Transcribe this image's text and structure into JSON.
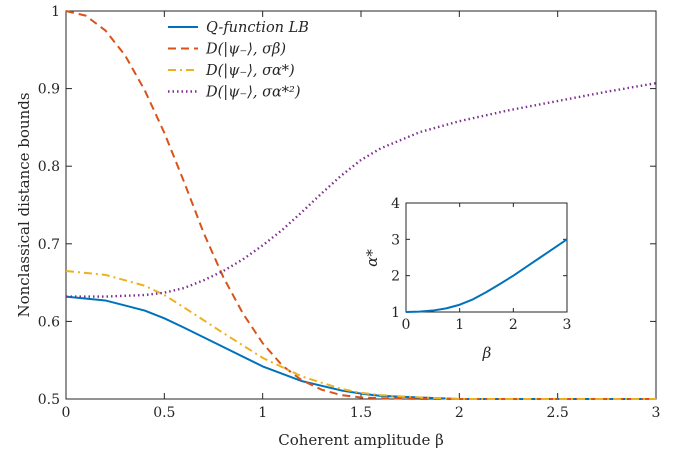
{
  "chart_data": [
    {
      "type": "line",
      "xlabel": "Coherent amplitude β",
      "ylabel": "Nonclassical distance bounds",
      "xlim": [
        0,
        3
      ],
      "ylim": [
        0.5,
        1.0
      ],
      "x_ticks": [
        "0",
        "0.5",
        "1",
        "1.5",
        "2",
        "2.5",
        "3"
      ],
      "y_ticks": [
        "0.5",
        "0.6",
        "0.7",
        "0.8",
        "0.9",
        "1"
      ],
      "grid": false,
      "legend_position": "top-center",
      "series": [
        {
          "name": "Q-function LB",
          "color": "#0072BD",
          "dash": "solid",
          "x": [
            0,
            0.2,
            0.4,
            0.5,
            0.6,
            0.8,
            1.0,
            1.2,
            1.4,
            1.5,
            1.6,
            1.8,
            2.0,
            2.5,
            3.0
          ],
          "y": [
            0.632,
            0.627,
            0.614,
            0.604,
            0.592,
            0.567,
            0.542,
            0.523,
            0.511,
            0.507,
            0.504,
            0.502,
            0.5,
            0.5,
            0.5
          ]
        },
        {
          "name": "D(|ψ₋⟩, σβ)",
          "color": "#D95319",
          "dash": "dashed",
          "x": [
            0,
            0.1,
            0.2,
            0.3,
            0.4,
            0.5,
            0.6,
            0.7,
            0.8,
            0.9,
            1.0,
            1.1,
            1.2,
            1.3,
            1.4,
            1.5,
            1.6,
            1.8,
            2.0,
            2.5,
            3.0
          ],
          "y": [
            1.0,
            0.994,
            0.975,
            0.943,
            0.898,
            0.843,
            0.78,
            0.714,
            0.657,
            0.61,
            0.572,
            0.543,
            0.524,
            0.512,
            0.505,
            0.502,
            0.501,
            0.5,
            0.5,
            0.5,
            0.5
          ]
        },
        {
          "name": "D(|ψ₋⟩, σα*)",
          "color": "#EDB120",
          "dash": "dashdot",
          "x": [
            0,
            0.2,
            0.4,
            0.5,
            0.6,
            0.8,
            1.0,
            1.2,
            1.4,
            1.5,
            1.6,
            1.8,
            2.0,
            2.5,
            3.0
          ],
          "y": [
            0.665,
            0.66,
            0.646,
            0.634,
            0.618,
            0.585,
            0.553,
            0.529,
            0.513,
            0.508,
            0.505,
            0.502,
            0.5,
            0.5,
            0.5
          ]
        },
        {
          "name": "D(|ψ₋⟩, σα*²)",
          "color": "#7E2F8E",
          "dash": "dotted",
          "x": [
            0,
            0.2,
            0.4,
            0.5,
            0.6,
            0.7,
            0.8,
            0.9,
            1.0,
            1.1,
            1.2,
            1.3,
            1.4,
            1.5,
            1.6,
            1.8,
            2.0,
            2.25,
            2.5,
            2.75,
            3.0
          ],
          "y": [
            0.632,
            0.632,
            0.634,
            0.637,
            0.643,
            0.653,
            0.665,
            0.68,
            0.698,
            0.718,
            0.741,
            0.765,
            0.788,
            0.808,
            0.823,
            0.844,
            0.858,
            0.872,
            0.884,
            0.896,
            0.907
          ]
        }
      ]
    },
    {
      "type": "line",
      "xlabel": "β",
      "ylabel": "α*",
      "xlim": [
        0,
        3
      ],
      "ylim": [
        1,
        4
      ],
      "x_ticks": [
        "0",
        "1",
        "2",
        "3"
      ],
      "y_ticks": [
        "1",
        "2",
        "3",
        "4"
      ],
      "grid": false,
      "series": [
        {
          "color": "#0072BD",
          "x": [
            0,
            0.25,
            0.5,
            0.75,
            1.0,
            1.25,
            1.5,
            1.75,
            2.0,
            2.25,
            2.5,
            2.75,
            3.0
          ],
          "y": [
            1.0,
            1.01,
            1.04,
            1.1,
            1.2,
            1.35,
            1.55,
            1.77,
            2.0,
            2.25,
            2.5,
            2.75,
            3.0
          ]
        }
      ]
    }
  ]
}
